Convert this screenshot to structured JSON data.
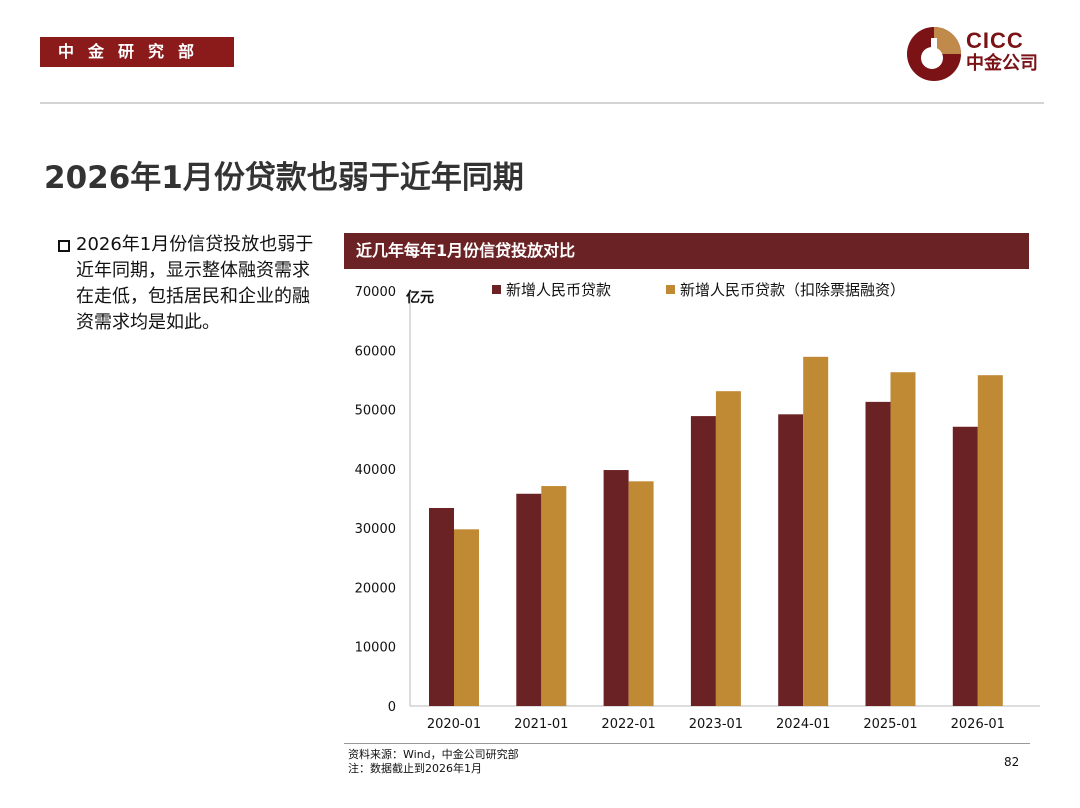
{
  "header": {
    "department": "中金研究部",
    "logo_en": "CICC",
    "logo_cn": "中金公司"
  },
  "title": "2026年1月份贷款也弱于近年同期",
  "bullet": "2026年1月份信贷投放也弱于近年同期，显示整体融资需求在走低，包括居民和企业的融资需求均是如此。",
  "colors": {
    "dark": "#6b2225",
    "gold": "#c08a35",
    "brand": "#8b1a1a"
  },
  "chart_data": {
    "type": "bar",
    "title": "近几年每年1月份信贷投放对比",
    "ylabel": "亿元",
    "ylim": [
      0,
      70000
    ],
    "yticks": [
      0,
      10000,
      20000,
      30000,
      40000,
      50000,
      60000,
      70000
    ],
    "categories": [
      "2020-01",
      "2021-01",
      "2022-01",
      "2023-01",
      "2024-01",
      "2025-01",
      "2026-01"
    ],
    "legend_position": "top",
    "series": [
      {
        "name": "新增人民币贷款",
        "color": "#6b2225",
        "values": [
          33400,
          35800,
          39800,
          48900,
          49200,
          51300,
          47100
        ]
      },
      {
        "name": "新增人民币贷款（扣除票据融资）",
        "color": "#c08a35",
        "values": [
          29800,
          37100,
          37900,
          53100,
          58900,
          56300,
          55800
        ]
      }
    ]
  },
  "footer": {
    "source": "资料来源：Wind，中金公司研究部",
    "note": "注：数据截止到2026年1月",
    "page": "82"
  }
}
